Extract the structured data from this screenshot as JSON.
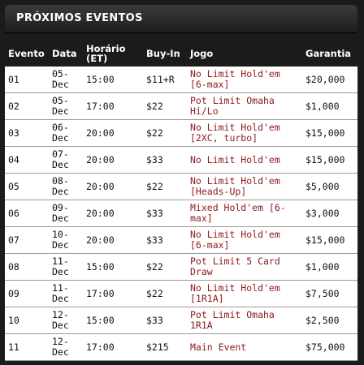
{
  "panel": {
    "title": "PRÓXIMOS EVENTOS"
  },
  "table": {
    "headers": [
      "Evento",
      "Data",
      "Horário (ET)",
      "Buy-In",
      "Jogo",
      "Garantia"
    ],
    "rows": [
      {
        "evento": "01",
        "data": "05-Dec",
        "horario": "15:00",
        "buyin": "$11+R",
        "jogo": "No Limit Hold'em [6-max]",
        "garantia": "$20,000"
      },
      {
        "evento": "02",
        "data": "05-Dec",
        "horario": "17:00",
        "buyin": "$22",
        "jogo": "Pot Limit Omaha Hi/Lo",
        "garantia": "$1,000"
      },
      {
        "evento": "03",
        "data": "06-Dec",
        "horario": "20:00",
        "buyin": "$22",
        "jogo": "No Limit Hold'em [2XC, turbo]",
        "garantia": "$15,000"
      },
      {
        "evento": "04",
        "data": "07-Dec",
        "horario": "20:00",
        "buyin": "$33",
        "jogo": "No Limit Hold'em",
        "garantia": "$15,000"
      },
      {
        "evento": "05",
        "data": "08-Dec",
        "horario": "20:00",
        "buyin": "$22",
        "jogo": "No Limit Hold'em [Heads-Up]",
        "garantia": "$5,000"
      },
      {
        "evento": "06",
        "data": "09-Dec",
        "horario": "20:00",
        "buyin": "$33",
        "jogo": "Mixed Hold'em [6-max]",
        "garantia": "$3,000"
      },
      {
        "evento": "07",
        "data": "10-Dec",
        "horario": "20:00",
        "buyin": "$33",
        "jogo": "No Limit Hold'em [6-max]",
        "garantia": "$15,000"
      },
      {
        "evento": "08",
        "data": "11-Dec",
        "horario": "15:00",
        "buyin": "$22",
        "jogo": "Pot Limit 5 Card Draw",
        "garantia": "$1,000"
      },
      {
        "evento": "09",
        "data": "11-Dec",
        "horario": "17:00",
        "buyin": "$22",
        "jogo": "No Limit Hold'em [1R1A]",
        "garantia": "$7,500"
      },
      {
        "evento": "10",
        "data": "12-Dec",
        "horario": "15:00",
        "buyin": "$33",
        "jogo": "Pot Limit Omaha 1R1A",
        "garantia": "$2,500"
      },
      {
        "evento": "11",
        "data": "12-Dec",
        "horario": "17:00",
        "buyin": "$215",
        "jogo": "Main Event",
        "garantia": "$75,000"
      }
    ]
  }
}
